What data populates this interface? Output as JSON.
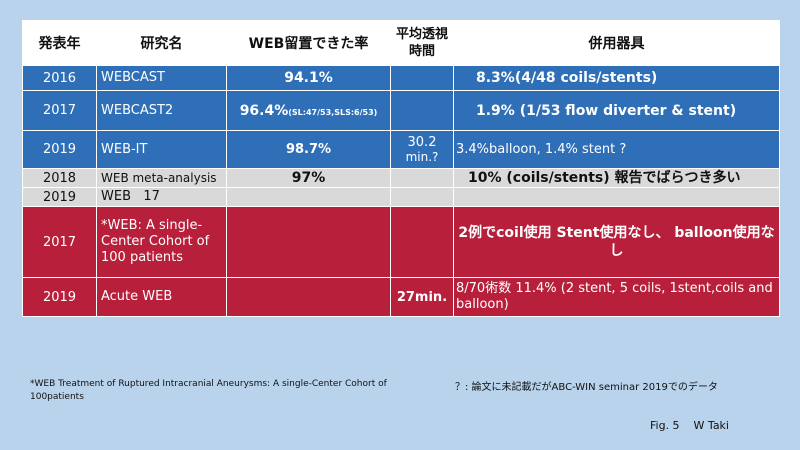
{
  "headers": {
    "year": "発表年",
    "study": "研究名",
    "rate": "WEB留置できた率",
    "time": "平均透視時間",
    "devices": "併用器具"
  },
  "rows": [
    {
      "year": "2016",
      "name": "WEBCAST",
      "rate": "94.1%",
      "time": "",
      "devices": "8.3%(4/48  coils/stents)"
    },
    {
      "year": "2017",
      "name": "WEBCAST2",
      "rate_main": "96.4%",
      "rate_sub": "(SL:47/53,SLS:6/53)",
      "time": "",
      "devices": "1.9% (1/53 flow diverter & stent)"
    },
    {
      "year": "2019",
      "name": "WEB-IT",
      "rate": "98.7%",
      "time_line1": "30.2",
      "time_line2": "min.?",
      "devices": "3.4%balloon,  1.4% stent ?"
    },
    {
      "year": "2018",
      "name": "WEB meta-analysis",
      "rate": "97%",
      "time": "",
      "devices": "10% (coils/stents)   報告でばらつき多い"
    },
    {
      "year": "2019",
      "name": "WEB   17",
      "rate": "",
      "time": "",
      "devices": ""
    },
    {
      "year": "2017",
      "name": "*WEB: A single-Center Cohort of 100 patients",
      "rate": "",
      "time": "",
      "devices": "2例でcoil使用   Stent使用なし、 balloon使用なし"
    },
    {
      "year": "2019",
      "name": "Acute WEB",
      "rate": "",
      "time": "27min.",
      "devices": "8/70術数 11.4% (2 stent,  5 coils, 1stent,coils and balloon)"
    }
  ],
  "footnote": "*WEB   Treatment of Ruptured Intracranial Aneurysms: A single-Center  Cohort of 100patients",
  "note_right": "？: 論文に未記載だがABC-WIN seminar 2019でのデータ",
  "figure_caption": "Fig. 5    W Taki",
  "colors": {
    "background": "#b9d3ec",
    "blue_row": "#2f6fb8",
    "gray_row": "#d9d9d9",
    "red_row": "#b71f3b",
    "header": "#ffffff"
  }
}
